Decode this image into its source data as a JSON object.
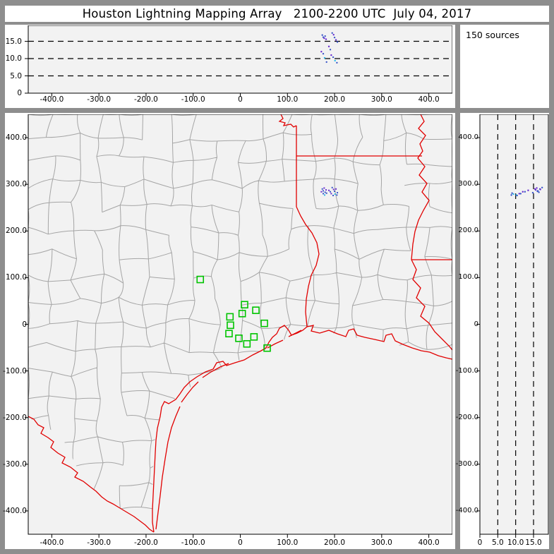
{
  "window": {
    "title": "Houston Lightning Mapping Array   2100-2200 UTC  July 04, 2017"
  },
  "sources_box": {
    "label": "150 sources"
  },
  "axes": {
    "ew_ticks": [
      {
        "v": -400,
        "t": "-400.0"
      },
      {
        "v": -300,
        "t": "-300.0"
      },
      {
        "v": -200,
        "t": "-200.0"
      },
      {
        "v": -100,
        "t": "-100.0"
      },
      {
        "v": 0,
        "t": "0"
      },
      {
        "v": 100,
        "t": "100.0"
      },
      {
        "v": 200,
        "t": "200.0"
      },
      {
        "v": 300,
        "t": "300.0"
      },
      {
        "v": 400,
        "t": "400.0"
      }
    ],
    "ns_ticks": [
      {
        "v": 400,
        "t": "400.0"
      },
      {
        "v": 300,
        "t": "300.0"
      },
      {
        "v": 200,
        "t": "200.0"
      },
      {
        "v": 100,
        "t": "100.0"
      },
      {
        "v": 0,
        "t": "0"
      },
      {
        "v": -100,
        "t": "-100.0"
      },
      {
        "v": -200,
        "t": "-200.0"
      },
      {
        "v": -300,
        "t": "-300.0"
      },
      {
        "v": -400,
        "t": "-400.0"
      }
    ],
    "alt_ticks": [
      {
        "v": 0,
        "t": "0"
      },
      {
        "v": 5,
        "t": "5.0"
      },
      {
        "v": 10,
        "t": "10.0"
      },
      {
        "v": 15,
        "t": "15.0"
      }
    ]
  },
  "chart_data": {
    "type": "scatter",
    "title": "Houston Lightning Mapping Array 2100-2200 UTC July 04, 2017",
    "layout": "xlma-three-panel (plan view, E-W altitude, N-S altitude)",
    "source_count": 150,
    "ew_range_km": [
      -450,
      450
    ],
    "ns_range_km": [
      -450,
      450
    ],
    "alt_range_km": [
      0,
      19.5
    ],
    "altitude_gridlines_km": [
      5,
      10,
      15
    ],
    "colors": {
      "state_border": "#e10000",
      "county_border": "#a5a5a5",
      "station": "#00c400",
      "plot_bg": "#f2f2f2",
      "frame": "#8e8e8e",
      "dot_blue": "#3a56c8",
      "dot_violet": "#6a2fd0",
      "dot_cyan": "#2ab8e8"
    },
    "stations_km": [
      [
        -85,
        96
      ],
      [
        9,
        42
      ],
      [
        33,
        30
      ],
      [
        4,
        23
      ],
      [
        -22,
        16
      ],
      [
        -21,
        -2
      ],
      [
        51,
        2
      ],
      [
        -24,
        -20
      ],
      [
        -3,
        -30
      ],
      [
        29,
        -27
      ],
      [
        14,
        -42
      ],
      [
        57,
        -51
      ]
    ],
    "sources": [
      {
        "e": 174,
        "n": 290,
        "alt": 16.8,
        "c": "dot_blue"
      },
      {
        "e": 176,
        "n": 286,
        "alt": 16.2,
        "c": "dot_blue"
      },
      {
        "e": 178,
        "n": 292,
        "alt": 15.9,
        "c": "dot_violet"
      },
      {
        "e": 180,
        "n": 283,
        "alt": 16.5,
        "c": "dot_blue"
      },
      {
        "e": 182,
        "n": 288,
        "alt": 15.6,
        "c": "dot_violet"
      },
      {
        "e": 176,
        "n": 280,
        "alt": 11.4,
        "c": "dot_blue"
      },
      {
        "e": 179,
        "n": 277,
        "alt": 10.2,
        "c": "dot_cyan"
      },
      {
        "e": 183,
        "n": 281,
        "alt": 9.0,
        "c": "dot_blue"
      },
      {
        "e": 172,
        "n": 284,
        "alt": 12.0,
        "c": "dot_violet"
      },
      {
        "e": 195,
        "n": 293,
        "alt": 17.4,
        "c": "dot_blue"
      },
      {
        "e": 198,
        "n": 289,
        "alt": 16.9,
        "c": "dot_violet"
      },
      {
        "e": 200,
        "n": 285,
        "alt": 16.1,
        "c": "dot_blue"
      },
      {
        "e": 203,
        "n": 290,
        "alt": 15.4,
        "c": "dot_violet"
      },
      {
        "e": 206,
        "n": 282,
        "alt": 14.8,
        "c": "dot_blue"
      },
      {
        "e": 193,
        "n": 280,
        "alt": 11.0,
        "c": "dot_violet"
      },
      {
        "e": 197,
        "n": 276,
        "alt": 10.4,
        "c": "dot_blue"
      },
      {
        "e": 201,
        "n": 279,
        "alt": 9.4,
        "c": "dot_cyan"
      },
      {
        "e": 205,
        "n": 277,
        "alt": 8.8,
        "c": "dot_blue"
      },
      {
        "e": 188,
        "n": 287,
        "alt": 13.5,
        "c": "dot_violet"
      },
      {
        "e": 191,
        "n": 284,
        "alt": 12.6,
        "c": "dot_blue"
      }
    ]
  }
}
